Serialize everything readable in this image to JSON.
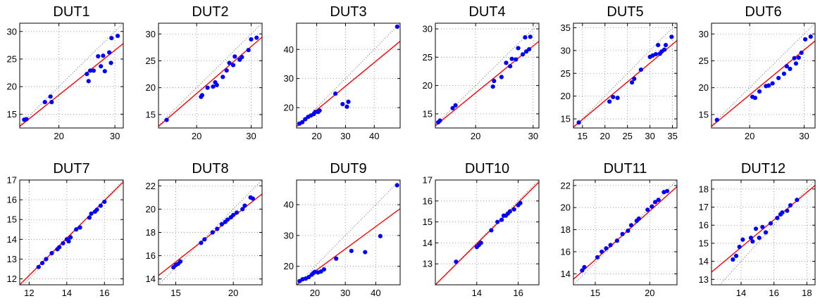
{
  "figure": {
    "line_color": "#ff0000",
    "point_color": "#0000ff",
    "grid_color": "#888888"
  },
  "chart_data": [
    {
      "type": "scatter",
      "title": "DUT1",
      "xlim": [
        13,
        31.5
      ],
      "ylim": [
        12.5,
        31.5
      ],
      "xticks": [
        20,
        30
      ],
      "yticks": [
        15,
        20,
        25,
        30
      ],
      "grid": true,
      "identity_line": true,
      "fit": {
        "x": [
          13,
          31.5
        ],
        "y": [
          12.8,
          27.8
        ]
      },
      "points": [
        [
          13.8,
          14.0
        ],
        [
          14.2,
          14.1
        ],
        [
          17.5,
          17.2
        ],
        [
          18.5,
          18.2
        ],
        [
          18.7,
          17.2
        ],
        [
          25.0,
          22.3
        ],
        [
          25.3,
          21.0
        ],
        [
          25.6,
          22.9
        ],
        [
          26.2,
          22.9
        ],
        [
          27.0,
          25.5
        ],
        [
          27.5,
          23.7
        ],
        [
          27.9,
          25.6
        ],
        [
          28.2,
          22.8
        ],
        [
          29.0,
          26.2
        ],
        [
          29.3,
          24.3
        ],
        [
          29.4,
          28.8
        ],
        [
          30.5,
          29.2
        ]
      ]
    },
    {
      "type": "scatter",
      "title": "DUT2",
      "xlim": [
        13,
        32
      ],
      "ylim": [
        12.5,
        32
      ],
      "xticks": [
        20,
        30
      ],
      "yticks": [
        15,
        20,
        25,
        30
      ],
      "grid": true,
      "identity_line": true,
      "fit": {
        "x": [
          13,
          32
        ],
        "y": [
          12.8,
          29.4
        ]
      },
      "points": [
        [
          14.5,
          14.0
        ],
        [
          20.8,
          18.3
        ],
        [
          21.0,
          18.6
        ],
        [
          22.0,
          20.0
        ],
        [
          23.0,
          20.2
        ],
        [
          23.4,
          21.0
        ],
        [
          23.7,
          20.5
        ],
        [
          24.8,
          22.0
        ],
        [
          25.5,
          23.2
        ],
        [
          26.0,
          24.6
        ],
        [
          26.7,
          24.2
        ],
        [
          27.0,
          25.8
        ],
        [
          27.9,
          25.2
        ],
        [
          28.3,
          25.7
        ],
        [
          29.5,
          27.0
        ],
        [
          30.0,
          29.0
        ],
        [
          31.0,
          29.3
        ]
      ]
    },
    {
      "type": "scatter",
      "title": "DUT3",
      "xlim": [
        13,
        49
      ],
      "ylim": [
        13,
        49
      ],
      "xticks": [
        20,
        30,
        40
      ],
      "yticks": [
        20,
        30,
        40
      ],
      "grid": true,
      "identity_line": true,
      "fit": {
        "x": [
          13,
          49
        ],
        "y": [
          13.5,
          42.8
        ]
      },
      "points": [
        [
          14.0,
          14.5
        ],
        [
          15.0,
          15.0
        ],
        [
          16.0,
          16.0
        ],
        [
          17.0,
          16.8
        ],
        [
          18.0,
          17.3
        ],
        [
          19.0,
          17.8
        ],
        [
          19.5,
          18.5
        ],
        [
          20.5,
          18.5
        ],
        [
          21.0,
          19.0
        ],
        [
          26.5,
          24.8
        ],
        [
          29.0,
          21.2
        ],
        [
          30.5,
          20.3
        ],
        [
          31.0,
          22.0
        ],
        [
          48.0,
          47.8
        ]
      ]
    },
    {
      "type": "scatter",
      "title": "DUT4",
      "xlim": [
        13,
        31
      ],
      "ylim": [
        12.5,
        31
      ],
      "xticks": [
        20,
        30
      ],
      "yticks": [
        15,
        20,
        25,
        30
      ],
      "grid": true,
      "identity_line": true,
      "fit": {
        "x": [
          13,
          31
        ],
        "y": [
          12.9,
          27.8
        ]
      },
      "points": [
        [
          13.5,
          13.5
        ],
        [
          13.8,
          13.8
        ],
        [
          16.0,
          16.0
        ],
        [
          16.5,
          16.5
        ],
        [
          23.0,
          19.8
        ],
        [
          23.2,
          20.8
        ],
        [
          24.5,
          21.5
        ],
        [
          25.3,
          24.0
        ],
        [
          26.0,
          23.4
        ],
        [
          26.3,
          24.7
        ],
        [
          27.0,
          24.6
        ],
        [
          27.4,
          26.6
        ],
        [
          28.2,
          25.5
        ],
        [
          28.6,
          28.5
        ],
        [
          28.8,
          26.0
        ],
        [
          29.3,
          26.4
        ],
        [
          29.5,
          28.6
        ]
      ]
    },
    {
      "type": "scatter",
      "title": "DUT5",
      "xlim": [
        13,
        36
      ],
      "ylim": [
        13,
        36
      ],
      "xticks": [
        15,
        20,
        25,
        30,
        35
      ],
      "yticks": [
        15,
        20,
        25,
        30,
        35
      ],
      "grid": true,
      "identity_line": true,
      "fit": {
        "x": [
          13,
          36
        ],
        "y": [
          13.2,
          32.2
        ]
      },
      "points": [
        [
          14.2,
          14.2
        ],
        [
          21.0,
          18.8
        ],
        [
          21.8,
          19.8
        ],
        [
          22.8,
          19.6
        ],
        [
          26.0,
          23.0
        ],
        [
          26.5,
          23.8
        ],
        [
          28.0,
          25.8
        ],
        [
          30.0,
          28.6
        ],
        [
          30.6,
          28.9
        ],
        [
          31.3,
          29.2
        ],
        [
          31.8,
          31.2
        ],
        [
          32.2,
          29.3
        ],
        [
          32.6,
          29.8
        ],
        [
          33.2,
          30.2
        ],
        [
          33.5,
          31.2
        ],
        [
          34.8,
          33.0
        ]
      ]
    },
    {
      "type": "scatter",
      "title": "DUT6",
      "xlim": [
        13,
        32
      ],
      "ylim": [
        12.5,
        32
      ],
      "xticks": [
        20,
        30
      ],
      "yticks": [
        15,
        20,
        25,
        30
      ],
      "grid": true,
      "identity_line": true,
      "fit": {
        "x": [
          13,
          32
        ],
        "y": [
          12.8,
          28.7
        ]
      },
      "points": [
        [
          14.0,
          14.0
        ],
        [
          20.5,
          18.3
        ],
        [
          21.0,
          18.1
        ],
        [
          21.8,
          19.3
        ],
        [
          23.0,
          20.3
        ],
        [
          23.5,
          20.4
        ],
        [
          24.2,
          20.8
        ],
        [
          25.3,
          21.8
        ],
        [
          26.3,
          22.6
        ],
        [
          26.8,
          24.0
        ],
        [
          27.4,
          23.5
        ],
        [
          28.2,
          25.5
        ],
        [
          28.5,
          24.5
        ],
        [
          29.0,
          25.6
        ],
        [
          29.5,
          26.5
        ],
        [
          30.2,
          29.0
        ],
        [
          31.2,
          29.5
        ]
      ]
    },
    {
      "type": "scatter",
      "title": "DUT7",
      "xlim": [
        11.5,
        17
      ],
      "ylim": [
        11.7,
        17
      ],
      "xticks": [
        12,
        14,
        16
      ],
      "yticks": [
        12,
        13,
        14,
        15,
        16,
        17
      ],
      "grid": true,
      "identity_line": true,
      "fit": {
        "x": [
          11.5,
          17
        ],
        "y": [
          11.7,
          16.9
        ]
      },
      "points": [
        [
          12.5,
          12.6
        ],
        [
          12.7,
          12.8
        ],
        [
          12.9,
          13.0
        ],
        [
          13.2,
          13.3
        ],
        [
          13.5,
          13.5
        ],
        [
          13.6,
          13.6
        ],
        [
          13.8,
          13.8
        ],
        [
          14.0,
          14.0
        ],
        [
          14.1,
          13.9
        ],
        [
          14.2,
          14.1
        ],
        [
          14.5,
          14.5
        ],
        [
          14.7,
          14.6
        ],
        [
          15.2,
          15.1
        ],
        [
          15.3,
          15.3
        ],
        [
          15.5,
          15.4
        ],
        [
          15.6,
          15.5
        ],
        [
          15.8,
          15.7
        ],
        [
          16.0,
          15.9
        ]
      ]
    },
    {
      "type": "scatter",
      "title": "DUT8",
      "xlim": [
        13.5,
        22.5
      ],
      "ylim": [
        13.5,
        22.5
      ],
      "xticks": [
        15,
        20
      ],
      "yticks": [
        14,
        16,
        18,
        20,
        22
      ],
      "grid": true,
      "identity_line": true,
      "fit": {
        "x": [
          13.5,
          22.5
        ],
        "y": [
          14.3,
          21.3
        ]
      },
      "points": [
        [
          14.8,
          15.0
        ],
        [
          15.0,
          15.2
        ],
        [
          15.2,
          15.3
        ],
        [
          15.4,
          15.5
        ],
        [
          17.2,
          17.1
        ],
        [
          17.5,
          17.4
        ],
        [
          18.2,
          18.0
        ],
        [
          18.6,
          18.3
        ],
        [
          19.0,
          18.7
        ],
        [
          19.3,
          18.9
        ],
        [
          19.5,
          19.1
        ],
        [
          19.8,
          19.3
        ],
        [
          20.0,
          19.5
        ],
        [
          20.3,
          19.7
        ],
        [
          20.8,
          20.0
        ],
        [
          21.0,
          20.3
        ],
        [
          21.5,
          21.0
        ],
        [
          21.7,
          20.9
        ]
      ]
    },
    {
      "type": "scatter",
      "title": "DUT9",
      "xlim": [
        14,
        48
      ],
      "ylim": [
        14,
        48
      ],
      "xticks": [
        20,
        30,
        40
      ],
      "yticks": [
        20,
        30,
        40
      ],
      "grid": true,
      "identity_line": true,
      "fit": {
        "x": [
          14,
          48
        ],
        "y": [
          14.0,
          38.7
        ]
      },
      "points": [
        [
          15.0,
          15.2
        ],
        [
          16.0,
          15.8
        ],
        [
          17.0,
          16.0
        ],
        [
          18.0,
          16.5
        ],
        [
          19.0,
          17.3
        ],
        [
          19.5,
          17.8
        ],
        [
          20.0,
          18.2
        ],
        [
          21.0,
          18.0
        ],
        [
          22.0,
          18.3
        ],
        [
          23.0,
          19.0
        ],
        [
          27.0,
          22.5
        ],
        [
          32.0,
          25.0
        ],
        [
          36.5,
          24.6
        ],
        [
          41.5,
          29.8
        ],
        [
          47.0,
          46.3
        ]
      ]
    },
    {
      "type": "scatter",
      "title": "DUT10",
      "xlim": [
        12,
        17
      ],
      "ylim": [
        12,
        17
      ],
      "xticks": [
        14,
        16
      ],
      "yticks": [
        13,
        14,
        15,
        16,
        17
      ],
      "grid": true,
      "identity_line": true,
      "fit": {
        "x": [
          12,
          17
        ],
        "y": [
          12.0,
          16.9
        ]
      },
      "points": [
        [
          13.0,
          13.1
        ],
        [
          14.0,
          13.8
        ],
        [
          14.1,
          13.9
        ],
        [
          14.2,
          14.0
        ],
        [
          14.7,
          14.6
        ],
        [
          15.0,
          15.0
        ],
        [
          15.2,
          15.1
        ],
        [
          15.3,
          15.3
        ],
        [
          15.4,
          15.3
        ],
        [
          15.5,
          15.4
        ],
        [
          15.6,
          15.5
        ],
        [
          15.8,
          15.6
        ],
        [
          16.0,
          15.8
        ],
        [
          16.1,
          15.9
        ]
      ]
    },
    {
      "type": "scatter",
      "title": "DUT11",
      "xlim": [
        13,
        22.5
      ],
      "ylim": [
        13,
        22.5
      ],
      "xticks": [
        15,
        20
      ],
      "yticks": [
        14,
        16,
        18,
        20,
        22
      ],
      "grid": true,
      "identity_line": true,
      "fit": {
        "x": [
          13,
          22.5
        ],
        "y": [
          13.5,
          21.9
        ]
      },
      "points": [
        [
          13.8,
          14.3
        ],
        [
          14.0,
          14.6
        ],
        [
          15.2,
          15.5
        ],
        [
          15.6,
          16.0
        ],
        [
          16.0,
          16.3
        ],
        [
          16.4,
          16.6
        ],
        [
          17.0,
          17.0
        ],
        [
          17.5,
          17.6
        ],
        [
          18.0,
          17.9
        ],
        [
          18.3,
          18.4
        ],
        [
          18.8,
          18.8
        ],
        [
          19.0,
          19.0
        ],
        [
          19.8,
          19.8
        ],
        [
          20.2,
          20.1
        ],
        [
          20.5,
          20.5
        ],
        [
          20.8,
          20.7
        ],
        [
          21.3,
          21.4
        ],
        [
          21.6,
          21.5
        ]
      ]
    },
    {
      "type": "scatter",
      "title": "DUT12",
      "xlim": [
        12.2,
        18.5
      ],
      "ylim": [
        12.7,
        18.5
      ],
      "xticks": [
        14,
        16,
        18
      ],
      "yticks": [
        13,
        14,
        15,
        16,
        17,
        18
      ],
      "grid": true,
      "identity_line": true,
      "fit": {
        "x": [
          12.2,
          18.5
        ],
        "y": [
          13.4,
          18.2
        ]
      },
      "points": [
        [
          13.5,
          14.1
        ],
        [
          13.7,
          14.3
        ],
        [
          13.9,
          14.8
        ],
        [
          14.1,
          15.2
        ],
        [
          14.6,
          15.3
        ],
        [
          14.7,
          15.1
        ],
        [
          14.9,
          15.8
        ],
        [
          15.1,
          15.3
        ],
        [
          15.3,
          15.9
        ],
        [
          15.5,
          15.6
        ],
        [
          15.8,
          16.1
        ],
        [
          16.2,
          16.4
        ],
        [
          16.4,
          16.6
        ],
        [
          16.5,
          16.7
        ],
        [
          16.8,
          16.8
        ],
        [
          17.0,
          17.1
        ],
        [
          17.4,
          17.4
        ]
      ]
    }
  ]
}
